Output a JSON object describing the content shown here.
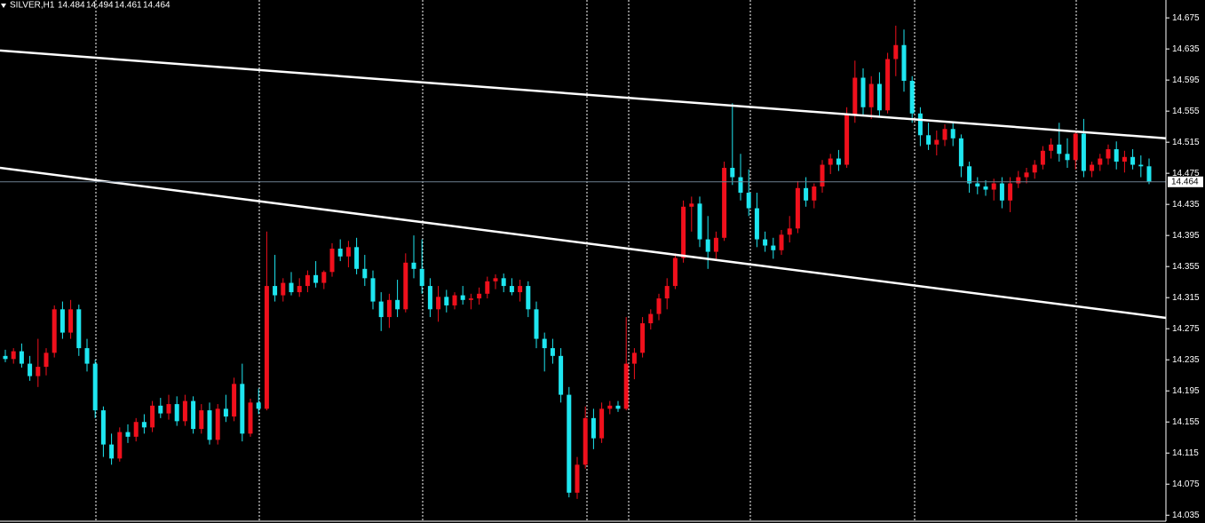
{
  "chart_data": {
    "type": "candlestick",
    "title": "SILVER,H1",
    "up_color": "#f0101c",
    "down_color": "#1ee6f0",
    "trendline_color": "#ffffff",
    "price_line_color": "#6d7f8f",
    "ylim": [
      14.025,
      14.698
    ],
    "yticks": [
      14.035,
      14.075,
      14.115,
      14.155,
      14.195,
      14.235,
      14.275,
      14.315,
      14.355,
      14.395,
      14.435,
      14.475,
      14.515,
      14.555,
      14.595,
      14.635,
      14.675
    ],
    "trendlines": [
      {
        "start": 14.633,
        "end": 14.52
      },
      {
        "start": 14.482,
        "end": 14.289
      }
    ],
    "ohlc": [
      [
        14.24,
        14.248,
        14.232,
        14.236
      ],
      [
        14.236,
        14.25,
        14.23,
        14.246
      ],
      [
        14.246,
        14.256,
        14.225,
        14.23
      ],
      [
        14.23,
        14.24,
        14.208,
        14.214
      ],
      [
        14.214,
        14.262,
        14.2,
        14.226
      ],
      [
        14.226,
        14.25,
        14.215,
        14.244
      ],
      [
        14.244,
        14.305,
        14.238,
        14.3
      ],
      [
        14.3,
        14.31,
        14.262,
        14.27
      ],
      [
        14.27,
        14.312,
        14.262,
        14.3
      ],
      [
        14.3,
        14.306,
        14.24,
        14.25
      ],
      [
        14.25,
        14.262,
        14.22,
        14.23
      ],
      [
        14.23,
        14.235,
        14.16,
        14.17
      ],
      [
        14.17,
        14.175,
        14.11,
        14.126
      ],
      [
        14.126,
        14.14,
        14.1,
        14.108
      ],
      [
        14.108,
        14.148,
        14.104,
        14.142
      ],
      [
        14.142,
        14.152,
        14.128,
        14.136
      ],
      [
        14.136,
        14.16,
        14.13,
        14.155
      ],
      [
        14.155,
        14.165,
        14.14,
        14.148
      ],
      [
        14.148,
        14.182,
        14.142,
        14.176
      ],
      [
        14.176,
        14.186,
        14.16,
        14.166
      ],
      [
        14.166,
        14.19,
        14.158,
        14.178
      ],
      [
        14.178,
        14.188,
        14.15,
        14.156
      ],
      [
        14.156,
        14.19,
        14.15,
        14.182
      ],
      [
        14.182,
        14.188,
        14.14,
        14.146
      ],
      [
        14.146,
        14.178,
        14.14,
        14.17
      ],
      [
        14.17,
        14.18,
        14.126,
        14.132
      ],
      [
        14.132,
        14.178,
        14.126,
        14.172
      ],
      [
        14.172,
        14.19,
        14.155,
        14.162
      ],
      [
        14.162,
        14.212,
        14.156,
        14.204
      ],
      [
        14.204,
        14.23,
        14.13,
        14.14
      ],
      [
        14.14,
        14.185,
        14.136,
        14.18
      ],
      [
        14.18,
        14.198,
        14.165,
        14.172
      ],
      [
        14.172,
        14.4,
        14.17,
        14.33
      ],
      [
        14.33,
        14.37,
        14.31,
        14.318
      ],
      [
        14.318,
        14.34,
        14.31,
        14.334
      ],
      [
        14.334,
        14.348,
        14.318,
        14.322
      ],
      [
        14.322,
        14.34,
        14.316,
        14.33
      ],
      [
        14.33,
        14.35,
        14.322,
        14.344
      ],
      [
        14.344,
        14.362,
        14.328,
        14.334
      ],
      [
        14.334,
        14.35,
        14.326,
        14.348
      ],
      [
        14.348,
        14.385,
        14.342,
        14.378
      ],
      [
        14.378,
        14.39,
        14.362,
        14.368
      ],
      [
        14.368,
        14.388,
        14.354,
        14.38
      ],
      [
        14.38,
        14.392,
        14.345,
        14.352
      ],
      [
        14.352,
        14.37,
        14.33,
        14.34
      ],
      [
        14.34,
        14.35,
        14.3,
        14.31
      ],
      [
        14.31,
        14.322,
        14.272,
        14.29
      ],
      [
        14.29,
        14.32,
        14.276,
        14.312
      ],
      [
        14.312,
        14.338,
        14.29,
        14.3
      ],
      [
        14.3,
        14.372,
        14.296,
        14.36
      ],
      [
        14.36,
        14.395,
        14.34,
        14.352
      ],
      [
        14.352,
        14.39,
        14.32,
        14.33
      ],
      [
        14.33,
        14.34,
        14.29,
        14.3
      ],
      [
        14.3,
        14.33,
        14.284,
        14.316
      ],
      [
        14.316,
        14.325,
        14.296,
        14.305
      ],
      [
        14.305,
        14.322,
        14.3,
        14.318
      ],
      [
        14.318,
        14.33,
        14.306,
        14.312
      ],
      [
        14.312,
        14.32,
        14.3,
        14.314
      ],
      [
        14.314,
        14.328,
        14.306,
        14.32
      ],
      [
        14.32,
        14.342,
        14.314,
        14.336
      ],
      [
        14.336,
        14.345,
        14.326,
        14.34
      ],
      [
        14.34,
        14.346,
        14.322,
        14.33
      ],
      [
        14.33,
        14.34,
        14.318,
        14.322
      ],
      [
        14.322,
        14.338,
        14.31,
        14.33
      ],
      [
        14.33,
        14.336,
        14.29,
        14.3
      ],
      [
        14.3,
        14.31,
        14.25,
        14.262
      ],
      [
        14.262,
        14.27,
        14.22,
        14.25
      ],
      [
        14.25,
        14.262,
        14.23,
        14.24
      ],
      [
        14.24,
        14.25,
        14.18,
        14.19
      ],
      [
        14.19,
        14.2,
        14.058,
        14.064
      ],
      [
        14.064,
        14.11,
        14.056,
        14.1
      ],
      [
        14.1,
        14.175,
        14.095,
        14.16
      ],
      [
        14.16,
        14.172,
        14.12,
        14.134
      ],
      [
        14.134,
        14.18,
        14.128,
        14.172
      ],
      [
        14.172,
        14.182,
        14.165,
        14.176
      ],
      [
        14.176,
        14.182,
        14.168,
        14.172
      ],
      [
        14.172,
        14.29,
        14.17,
        14.23
      ],
      [
        14.23,
        14.25,
        14.21,
        14.244
      ],
      [
        14.244,
        14.29,
        14.238,
        14.282
      ],
      [
        14.282,
        14.3,
        14.274,
        14.294
      ],
      [
        14.294,
        14.32,
        14.286,
        14.314
      ],
      [
        14.314,
        14.34,
        14.3,
        14.33
      ],
      [
        14.33,
        14.372,
        14.326,
        14.366
      ],
      [
        14.366,
        14.44,
        14.36,
        14.432
      ],
      [
        14.432,
        14.445,
        14.4,
        14.436
      ],
      [
        14.436,
        14.445,
        14.38,
        14.39
      ],
      [
        14.39,
        14.42,
        14.352,
        14.374
      ],
      [
        14.374,
        14.4,
        14.365,
        14.392
      ],
      [
        14.392,
        14.49,
        14.388,
        14.482
      ],
      [
        14.482,
        14.565,
        14.46,
        14.47
      ],
      [
        14.47,
        14.5,
        14.44,
        14.45
      ],
      [
        14.45,
        14.48,
        14.42,
        14.43
      ],
      [
        14.43,
        14.45,
        14.38,
        14.39
      ],
      [
        14.39,
        14.4,
        14.374,
        14.382
      ],
      [
        14.382,
        14.392,
        14.365,
        14.376
      ],
      [
        14.376,
        14.402,
        14.37,
        14.396
      ],
      [
        14.396,
        14.42,
        14.386,
        14.404
      ],
      [
        14.404,
        14.465,
        14.398,
        14.456
      ],
      [
        14.456,
        14.47,
        14.432,
        14.44
      ],
      [
        14.44,
        14.462,
        14.43,
        14.458
      ],
      [
        14.458,
        14.492,
        14.45,
        14.486
      ],
      [
        14.486,
        14.5,
        14.474,
        14.494
      ],
      [
        14.494,
        14.505,
        14.478,
        14.486
      ],
      [
        14.486,
        14.56,
        14.482,
        14.55
      ],
      [
        14.55,
        14.62,
        14.54,
        14.598
      ],
      [
        14.598,
        14.61,
        14.55,
        14.56
      ],
      [
        14.56,
        14.6,
        14.545,
        14.59
      ],
      [
        14.59,
        14.605,
        14.548,
        14.556
      ],
      [
        14.556,
        14.63,
        14.552,
        14.622
      ],
      [
        14.622,
        14.665,
        14.6,
        14.64
      ],
      [
        14.64,
        14.66,
        14.58,
        14.594
      ],
      [
        14.594,
        14.6,
        14.54,
        14.552
      ],
      [
        14.552,
        14.56,
        14.51,
        14.524
      ],
      [
        14.524,
        14.54,
        14.505,
        14.512
      ],
      [
        14.512,
        14.53,
        14.498,
        14.518
      ],
      [
        14.518,
        14.538,
        14.51,
        14.532
      ],
      [
        14.532,
        14.54,
        14.51,
        14.52
      ],
      [
        14.52,
        14.525,
        14.47,
        14.484
      ],
      [
        14.484,
        14.49,
        14.45,
        14.462
      ],
      [
        14.462,
        14.47,
        14.448,
        14.458
      ],
      [
        14.458,
        14.466,
        14.446,
        14.454
      ],
      [
        14.454,
        14.468,
        14.44,
        14.462
      ],
      [
        14.462,
        14.47,
        14.43,
        14.44
      ],
      [
        14.44,
        14.47,
        14.425,
        14.462
      ],
      [
        14.462,
        14.478,
        14.456,
        14.47
      ],
      [
        14.47,
        14.482,
        14.462,
        14.476
      ],
      [
        14.476,
        14.492,
        14.468,
        14.486
      ],
      [
        14.486,
        14.51,
        14.48,
        14.504
      ],
      [
        14.504,
        14.52,
        14.494,
        14.512
      ],
      [
        14.512,
        14.54,
        14.49,
        14.5
      ],
      [
        14.5,
        14.52,
        14.482,
        14.492
      ],
      [
        14.492,
        14.53,
        14.48,
        14.526
      ],
      [
        14.526,
        14.545,
        14.47,
        14.478
      ],
      [
        14.478,
        14.49,
        14.47,
        14.486
      ],
      [
        14.486,
        14.5,
        14.478,
        14.494
      ],
      [
        14.494,
        14.512,
        14.486,
        14.506
      ],
      [
        14.506,
        14.516,
        14.48,
        14.49
      ],
      [
        14.49,
        14.504,
        14.476,
        14.496
      ],
      [
        14.496,
        14.506,
        14.48,
        14.486
      ],
      [
        14.486,
        14.498,
        14.47,
        14.484
      ],
      [
        14.484,
        14.494,
        14.461,
        14.464
      ]
    ]
  }
}
